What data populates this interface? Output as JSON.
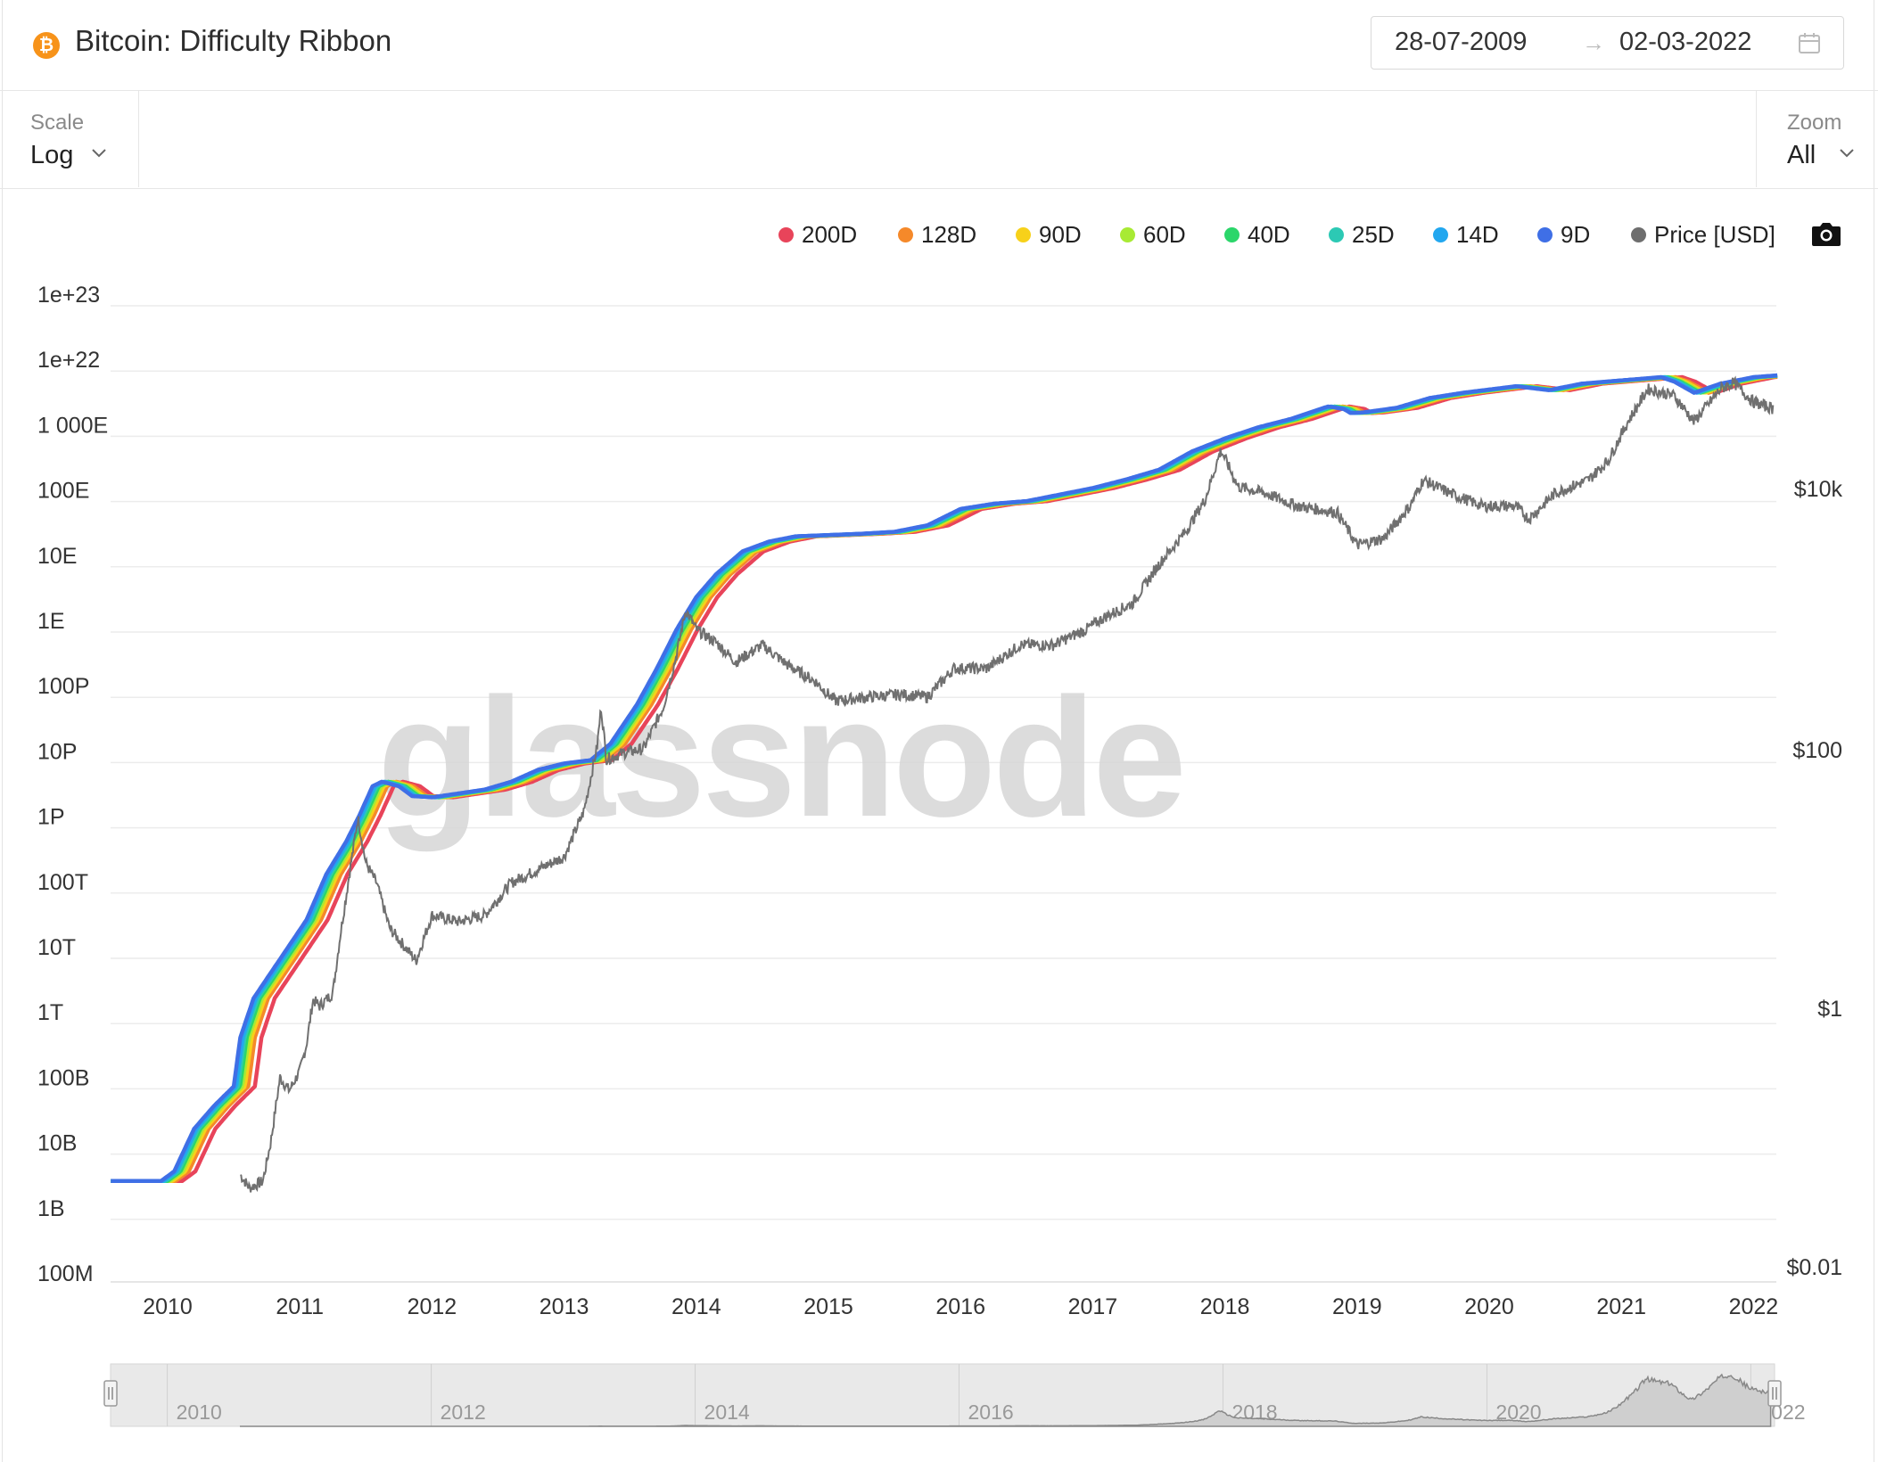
{
  "header": {
    "icon_glyph": "₿",
    "title": "Bitcoin: Difficulty Ribbon",
    "date_from": "28-07-2009",
    "date_arrow": "→",
    "date_to": "02-03-2022"
  },
  "controls": {
    "scale_label": "Scale",
    "scale_value": "Log",
    "zoom_label": "Zoom",
    "zoom_value": "All"
  },
  "watermark": "glassnode",
  "icons": [
    "bitcoin-icon",
    "calendar-icon",
    "chevron-down-icon",
    "camera-icon",
    "range-handle-icon"
  ],
  "chart_data": {
    "type": "line",
    "title": "Bitcoin: Difficulty Ribbon",
    "y_scale": "log",
    "grid": true,
    "legend_position": "top-right",
    "legend": [
      {
        "name": "200D",
        "color": "#e8445a"
      },
      {
        "name": "128D",
        "color": "#f5892a"
      },
      {
        "name": "90D",
        "color": "#f7d11a"
      },
      {
        "name": "60D",
        "color": "#a8ea34"
      },
      {
        "name": "40D",
        "color": "#2bd66a"
      },
      {
        "name": "25D",
        "color": "#2cc9b4"
      },
      {
        "name": "14D",
        "color": "#22a7ef"
      },
      {
        "name": "9D",
        "color": "#3f6fe6"
      },
      {
        "name": "Price [USD]",
        "color": "#6e6e6e"
      }
    ],
    "left_axis_ticks": [
      "1e+23",
      "1e+22",
      "1 000E",
      "100E",
      "10E",
      "1E",
      "100P",
      "10P",
      "1P",
      "100T",
      "10T",
      "1T",
      "100B",
      "10B",
      "1B",
      "100M"
    ],
    "right_axis_ticks": [
      "$10k",
      "$100",
      "$1",
      "$0.01"
    ],
    "x_ticks": [
      "2010",
      "2011",
      "2012",
      "2013",
      "2014",
      "2015",
      "2016",
      "2017",
      "2018",
      "2019",
      "2020",
      "2021",
      "2022"
    ],
    "navigator_ticks": [
      "2010",
      "2012",
      "2014",
      "2016",
      "2018",
      "2020",
      "2022"
    ],
    "ribbon_9d_log10": [
      [
        2009.57,
        9.3
      ],
      [
        2009.95,
        9.3
      ],
      [
        2010.05,
        9.45
      ],
      [
        2010.2,
        10.1
      ],
      [
        2010.35,
        10.45
      ],
      [
        2010.5,
        10.75
      ],
      [
        2010.55,
        11.5
      ],
      [
        2010.65,
        12.1
      ],
      [
        2010.75,
        12.4
      ],
      [
        2010.9,
        12.85
      ],
      [
        2011.05,
        13.3
      ],
      [
        2011.2,
        14.0
      ],
      [
        2011.35,
        14.5
      ],
      [
        2011.45,
        14.9
      ],
      [
        2011.55,
        15.35
      ],
      [
        2011.62,
        15.42
      ],
      [
        2011.75,
        15.35
      ],
      [
        2011.85,
        15.2
      ],
      [
        2012.0,
        15.18
      ],
      [
        2012.2,
        15.24
      ],
      [
        2012.4,
        15.3
      ],
      [
        2012.6,
        15.42
      ],
      [
        2012.8,
        15.6
      ],
      [
        2013.0,
        15.7
      ],
      [
        2013.2,
        15.75
      ],
      [
        2013.35,
        16.0
      ],
      [
        2013.55,
        16.6
      ],
      [
        2013.7,
        17.15
      ],
      [
        2013.85,
        17.75
      ],
      [
        2014.0,
        18.25
      ],
      [
        2014.15,
        18.6
      ],
      [
        2014.35,
        18.95
      ],
      [
        2014.55,
        19.1
      ],
      [
        2014.75,
        19.18
      ],
      [
        2015.0,
        19.2
      ],
      [
        2015.25,
        19.22
      ],
      [
        2015.5,
        19.25
      ],
      [
        2015.75,
        19.35
      ],
      [
        2015.9,
        19.5
      ],
      [
        2016.0,
        19.6
      ],
      [
        2016.25,
        19.68
      ],
      [
        2016.5,
        19.72
      ],
      [
        2016.75,
        19.82
      ],
      [
        2017.0,
        19.92
      ],
      [
        2017.25,
        20.05
      ],
      [
        2017.5,
        20.2
      ],
      [
        2017.75,
        20.48
      ],
      [
        2018.0,
        20.68
      ],
      [
        2018.25,
        20.85
      ],
      [
        2018.5,
        20.98
      ],
      [
        2018.78,
        21.17
      ],
      [
        2018.9,
        21.13
      ],
      [
        2018.95,
        21.07
      ],
      [
        2019.05,
        21.08
      ],
      [
        2019.3,
        21.15
      ],
      [
        2019.55,
        21.3
      ],
      [
        2019.8,
        21.38
      ],
      [
        2020.0,
        21.43
      ],
      [
        2020.2,
        21.48
      ],
      [
        2020.45,
        21.42
      ],
      [
        2020.7,
        21.52
      ],
      [
        2021.0,
        21.57
      ],
      [
        2021.3,
        21.62
      ],
      [
        2021.4,
        21.55
      ],
      [
        2021.55,
        21.38
      ],
      [
        2021.75,
        21.52
      ],
      [
        2022.0,
        21.62
      ],
      [
        2022.2,
        21.65
      ]
    ],
    "price_usd_log10": [
      [
        2010.55,
        -1.3
      ],
      [
        2010.62,
        -1.4
      ],
      [
        2010.72,
        -1.35
      ],
      [
        2010.78,
        -1.05
      ],
      [
        2010.85,
        -0.55
      ],
      [
        2010.92,
        -0.65
      ],
      [
        2011.0,
        -0.5
      ],
      [
        2011.05,
        -0.3
      ],
      [
        2011.1,
        0.05
      ],
      [
        2011.15,
        0.0
      ],
      [
        2011.25,
        0.1
      ],
      [
        2011.3,
        0.5
      ],
      [
        2011.38,
        1.05
      ],
      [
        2011.44,
        1.45
      ],
      [
        2011.5,
        1.1
      ],
      [
        2011.58,
        0.95
      ],
      [
        2011.68,
        0.6
      ],
      [
        2011.8,
        0.45
      ],
      [
        2011.88,
        0.35
      ],
      [
        2012.0,
        0.7
      ],
      [
        2012.2,
        0.65
      ],
      [
        2012.4,
        0.7
      ],
      [
        2012.6,
        0.95
      ],
      [
        2012.8,
        1.05
      ],
      [
        2013.0,
        1.15
      ],
      [
        2013.15,
        1.5
      ],
      [
        2013.25,
        2.0
      ],
      [
        2013.28,
        2.3
      ],
      [
        2013.32,
        1.9
      ],
      [
        2013.45,
        1.95
      ],
      [
        2013.6,
        1.98
      ],
      [
        2013.75,
        2.3
      ],
      [
        2013.85,
        2.7
      ],
      [
        2013.92,
        3.05
      ],
      [
        2014.0,
        2.9
      ],
      [
        2014.15,
        2.8
      ],
      [
        2014.3,
        2.65
      ],
      [
        2014.5,
        2.78
      ],
      [
        2014.7,
        2.62
      ],
      [
        2014.9,
        2.5
      ],
      [
        2015.05,
        2.35
      ],
      [
        2015.3,
        2.38
      ],
      [
        2015.55,
        2.4
      ],
      [
        2015.75,
        2.38
      ],
      [
        2015.95,
        2.6
      ],
      [
        2016.2,
        2.6
      ],
      [
        2016.45,
        2.78
      ],
      [
        2016.7,
        2.78
      ],
      [
        2016.95,
        2.9
      ],
      [
        2017.1,
        3.0
      ],
      [
        2017.3,
        3.1
      ],
      [
        2017.5,
        3.4
      ],
      [
        2017.7,
        3.65
      ],
      [
        2017.85,
        3.9
      ],
      [
        2017.97,
        4.28
      ],
      [
        2018.1,
        4.0
      ],
      [
        2018.3,
        3.95
      ],
      [
        2018.55,
        3.85
      ],
      [
        2018.85,
        3.8
      ],
      [
        2019.0,
        3.55
      ],
      [
        2019.2,
        3.6
      ],
      [
        2019.4,
        3.85
      ],
      [
        2019.5,
        4.05
      ],
      [
        2019.7,
        3.95
      ],
      [
        2019.95,
        3.85
      ],
      [
        2020.2,
        3.85
      ],
      [
        2020.3,
        3.75
      ],
      [
        2020.5,
        3.95
      ],
      [
        2020.75,
        4.05
      ],
      [
        2020.9,
        4.2
      ],
      [
        2021.05,
        4.5
      ],
      [
        2021.2,
        4.75
      ],
      [
        2021.4,
        4.7
      ],
      [
        2021.55,
        4.5
      ],
      [
        2021.75,
        4.75
      ],
      [
        2021.85,
        4.8
      ],
      [
        2022.0,
        4.65
      ],
      [
        2022.15,
        4.6
      ]
    ]
  }
}
